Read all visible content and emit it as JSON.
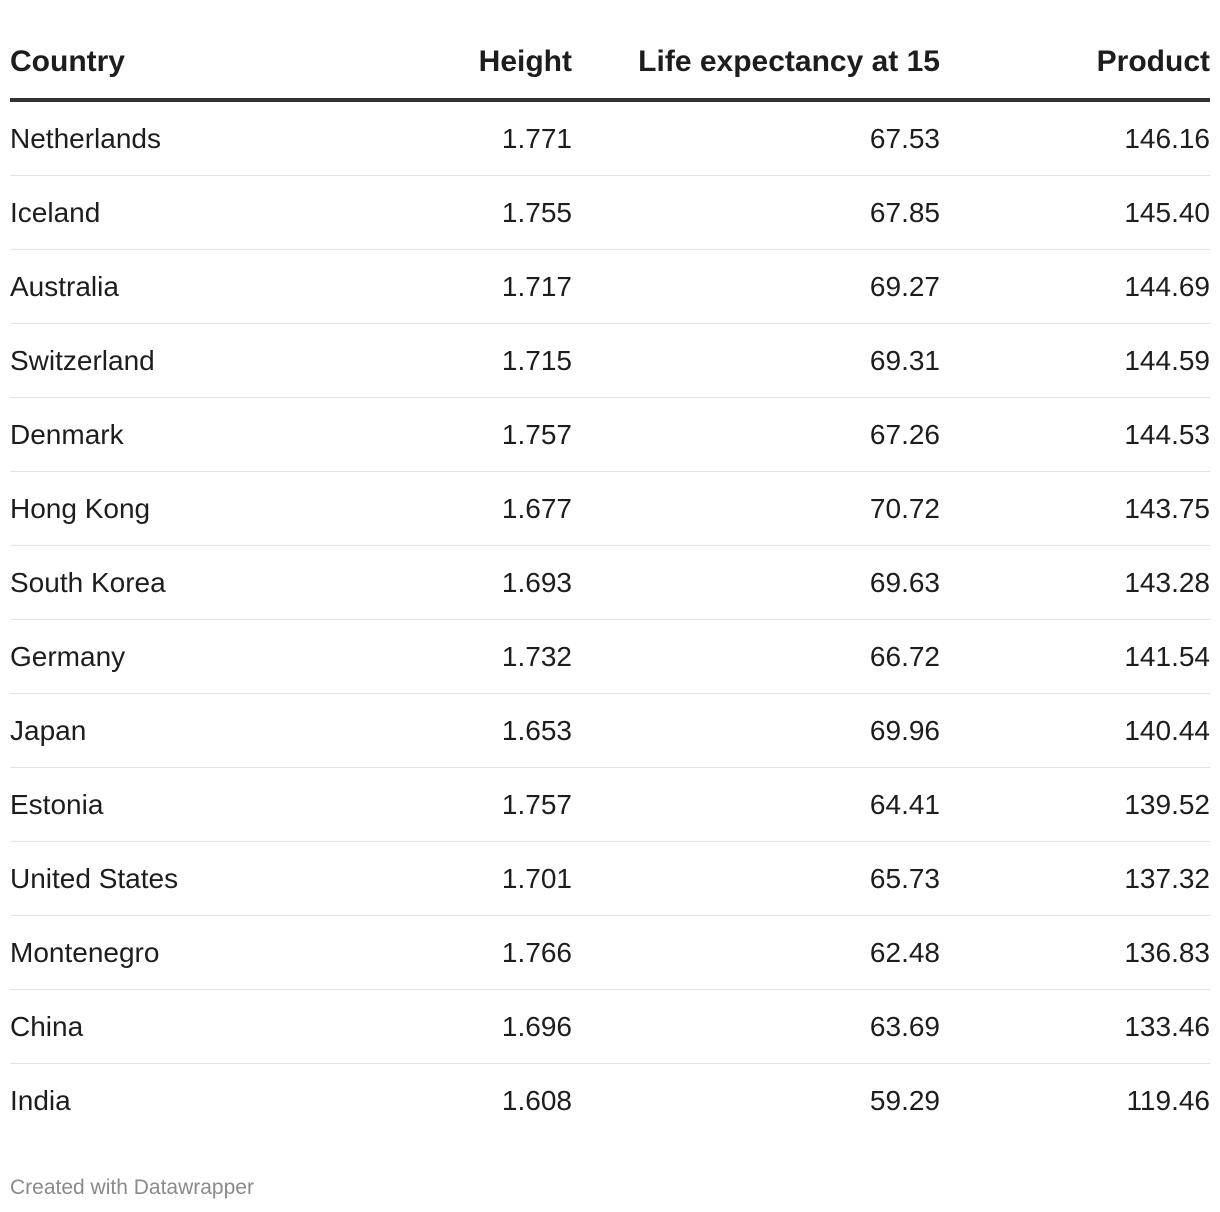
{
  "chart_data": {
    "type": "table",
    "columns": [
      "Country",
      "Height",
      "Life expectancy at 15",
      "Product"
    ],
    "rows": [
      [
        "Netherlands",
        "1.771",
        "67.53",
        "146.16"
      ],
      [
        "Iceland",
        "1.755",
        "67.85",
        "145.40"
      ],
      [
        "Australia",
        "1.717",
        "69.27",
        "144.69"
      ],
      [
        "Switzerland",
        "1.715",
        "69.31",
        "144.59"
      ],
      [
        "Denmark",
        "1.757",
        "67.26",
        "144.53"
      ],
      [
        "Hong Kong",
        "1.677",
        "70.72",
        "143.75"
      ],
      [
        "South Korea",
        "1.693",
        "69.63",
        "143.28"
      ],
      [
        "Germany",
        "1.732",
        "66.72",
        "141.54"
      ],
      [
        "Japan",
        "1.653",
        "69.96",
        "140.44"
      ],
      [
        "Estonia",
        "1.757",
        "64.41",
        "139.52"
      ],
      [
        "United States",
        "1.701",
        "65.73",
        "137.32"
      ],
      [
        "Montenegro",
        "1.766",
        "62.48",
        "136.83"
      ],
      [
        "China",
        "1.696",
        "63.69",
        "133.46"
      ],
      [
        "India",
        "1.608",
        "59.29",
        "119.46"
      ]
    ]
  },
  "footer": {
    "credit": "Created with Datawrapper"
  },
  "colors": {
    "text": "#1d1d1d",
    "header_rule": "#333333",
    "row_rule": "#e3e3e3",
    "footer_text": "#8a8a8a"
  }
}
